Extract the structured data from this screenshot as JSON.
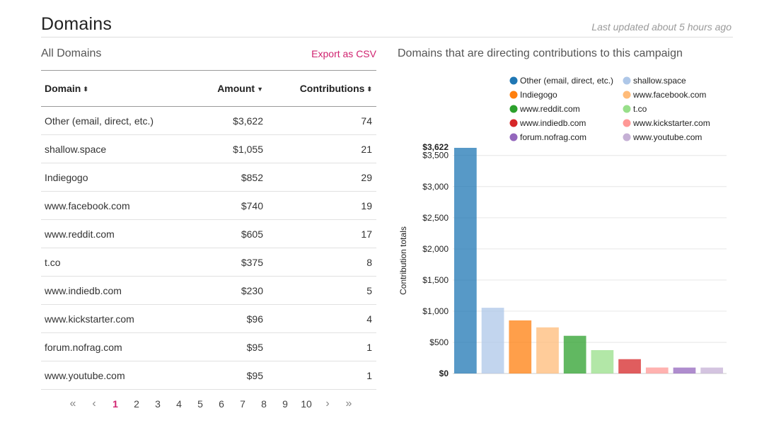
{
  "header": {
    "title": "Domains",
    "updated": "Last updated about 5 hours ago"
  },
  "table": {
    "section_title": "All Domains",
    "export_label": "Export as CSV",
    "columns": [
      "Domain",
      "Amount",
      "Contributions"
    ],
    "sort_icons": {
      "domain": "⬍",
      "amount": "▼",
      "contributions": "⬍"
    },
    "rows": [
      {
        "domain": "Other (email, direct, etc.)",
        "amount": "$3,622",
        "contributions": "74"
      },
      {
        "domain": "shallow.space",
        "amount": "$1,055",
        "contributions": "21"
      },
      {
        "domain": "Indiegogo",
        "amount": "$852",
        "contributions": "29"
      },
      {
        "domain": "www.facebook.com",
        "amount": "$740",
        "contributions": "19"
      },
      {
        "domain": "www.reddit.com",
        "amount": "$605",
        "contributions": "17"
      },
      {
        "domain": "t.co",
        "amount": "$375",
        "contributions": "8"
      },
      {
        "domain": "www.indiedb.com",
        "amount": "$230",
        "contributions": "5"
      },
      {
        "domain": "www.kickstarter.com",
        "amount": "$96",
        "contributions": "4"
      },
      {
        "domain": "forum.nofrag.com",
        "amount": "$95",
        "contributions": "1"
      },
      {
        "domain": "www.youtube.com",
        "amount": "$95",
        "contributions": "1"
      }
    ]
  },
  "pagination": {
    "first": "«",
    "prev": "‹",
    "pages": [
      "1",
      "2",
      "3",
      "4",
      "5",
      "6",
      "7",
      "8",
      "9",
      "10"
    ],
    "next": "›",
    "last": "»",
    "current": "1"
  },
  "chart_data": {
    "type": "bar",
    "title": "Domains that are directing contributions to this campaign",
    "ylabel": "Contribution totals",
    "xlabel": "",
    "ylim": [
      0,
      3622
    ],
    "max_label": "$3,622",
    "yticks": [
      {
        "value": 0,
        "label": "$0"
      },
      {
        "value": 500,
        "label": "$500"
      },
      {
        "value": 1000,
        "label": "$1,000"
      },
      {
        "value": 1500,
        "label": "$1,500"
      },
      {
        "value": 2000,
        "label": "$2,000"
      },
      {
        "value": 2500,
        "label": "$2,500"
      },
      {
        "value": 3000,
        "label": "$3,000"
      },
      {
        "value": 3500,
        "label": "$3,500"
      }
    ],
    "grid": true,
    "legend_position": "top",
    "categories": [
      "Other (email, direct, etc.)",
      "shallow.space",
      "Indiegogo",
      "www.facebook.com",
      "www.reddit.com",
      "t.co",
      "www.indiedb.com",
      "www.kickstarter.com",
      "forum.nofrag.com",
      "www.youtube.com"
    ],
    "values": [
      3622,
      1055,
      852,
      740,
      605,
      375,
      230,
      96,
      95,
      95
    ],
    "colors": [
      "#1f77b4",
      "#aec7e8",
      "#ff7f0e",
      "#ffbb78",
      "#2ca02c",
      "#98df8a",
      "#d62728",
      "#ff9896",
      "#9467bd",
      "#c5b0d5"
    ]
  }
}
